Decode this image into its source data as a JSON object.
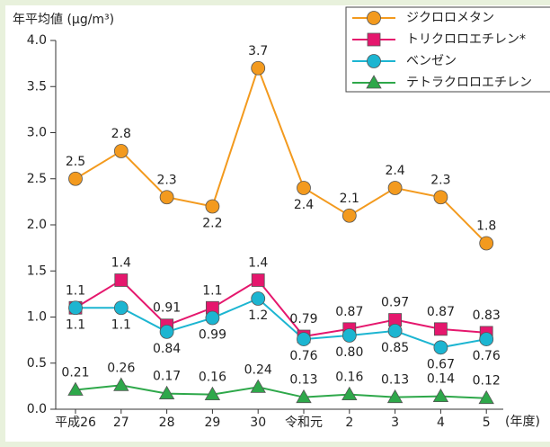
{
  "chart_data": {
    "type": "line",
    "y_label": "年平均値 (μg/m³)",
    "x_label": "(年度)",
    "categories": [
      "平成26",
      "27",
      "28",
      "29",
      "30",
      "令和元",
      "2",
      "3",
      "4",
      "5"
    ],
    "series": [
      {
        "name": "ジクロロメタン",
        "color": "#f39a1e",
        "marker": "circle",
        "values": [
          2.5,
          2.8,
          2.3,
          2.2,
          3.7,
          2.4,
          2.1,
          2.4,
          2.3,
          1.8
        ],
        "value_labels": [
          "2.5",
          "2.8",
          "2.3",
          "2.2",
          "3.7",
          "2.4",
          "2.1",
          "2.4",
          "2.3",
          "1.8"
        ]
      },
      {
        "name": "トリクロロエチレン*",
        "color": "#e5176d",
        "marker": "square",
        "values": [
          1.1,
          1.4,
          0.91,
          1.1,
          1.4,
          0.79,
          0.87,
          0.97,
          0.87,
          0.83
        ],
        "value_labels": [
          "1.1",
          "1.4",
          "0.91",
          "1.1",
          "1.4",
          "0.79",
          "0.87",
          "0.97",
          "0.87",
          "0.83"
        ]
      },
      {
        "name": "ベンゼン",
        "color": "#1cb5d1",
        "marker": "circle",
        "values": [
          1.1,
          1.1,
          0.84,
          0.99,
          1.2,
          0.76,
          0.8,
          0.85,
          0.67,
          0.76
        ],
        "value_labels": [
          "1.1",
          "1.1",
          "0.84",
          "0.99",
          "1.2",
          "0.76",
          "0.80",
          "0.85",
          "0.67",
          "0.76"
        ]
      },
      {
        "name": "テトラクロロエチレン",
        "color": "#2ea84a",
        "marker": "triangle",
        "values": [
          0.21,
          0.26,
          0.17,
          0.16,
          0.24,
          0.13,
          0.16,
          0.13,
          0.14,
          0.12
        ],
        "value_labels": [
          "0.21",
          "0.26",
          "0.17",
          "0.16",
          "0.24",
          "0.13",
          "0.16",
          "0.13",
          "0.14",
          "0.12"
        ]
      }
    ],
    "ylim": [
      0,
      4
    ],
    "yticks": [
      {
        "value": 0,
        "label": "0.0"
      },
      0.5,
      {
        "value": 1,
        "label": "1.0"
      },
      1.5,
      {
        "value": 2,
        "label": "2.0"
      },
      2.5,
      {
        "value": 3,
        "label": "3.0"
      },
      3.5,
      {
        "value": 4,
        "label": "4.0"
      }
    ],
    "legend": "upper right"
  }
}
